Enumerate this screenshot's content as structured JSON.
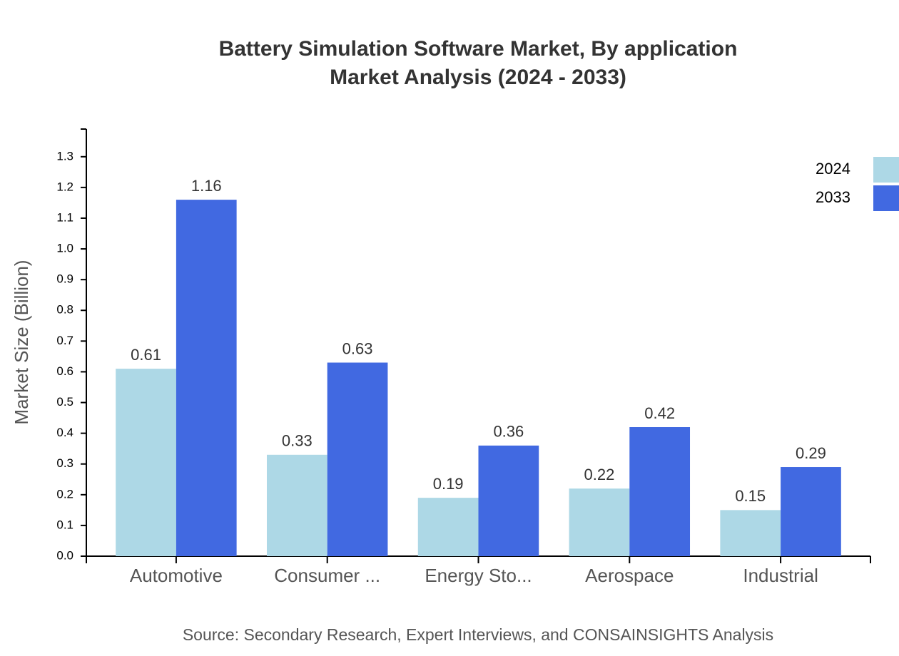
{
  "chart_data": {
    "type": "bar",
    "title": "Battery Simulation Software Market, By application",
    "subtitle": "Market Analysis (2024 - 2033)",
    "y_label": "Market Size (Billion)",
    "source": "Source: Secondary Research, Expert Interviews, and CONSAINSIGHTS Analysis",
    "categories": [
      "Automotive",
      "Consumer ...",
      "Energy Sto...",
      "Aerospace",
      "Industrial"
    ],
    "series": [
      {
        "name": "2024",
        "color": "#add8e6",
        "values": [
          0.61,
          0.33,
          0.19,
          0.22,
          0.15
        ]
      },
      {
        "name": "2033",
        "color": "#4169e1",
        "values": [
          1.16,
          0.63,
          0.36,
          0.42,
          0.29
        ]
      }
    ],
    "ylim": [
      0,
      1.39
    ],
    "yticks": [
      {
        "value": 0,
        "label": "0.0"
      },
      0.1,
      0.2,
      0.3,
      0.4,
      0.5,
      0.6,
      0.7,
      0.8,
      0.9,
      {
        "value": 1,
        "label": "1.0"
      },
      1.1,
      1.2,
      1.3
    ],
    "legend": "top-right"
  }
}
